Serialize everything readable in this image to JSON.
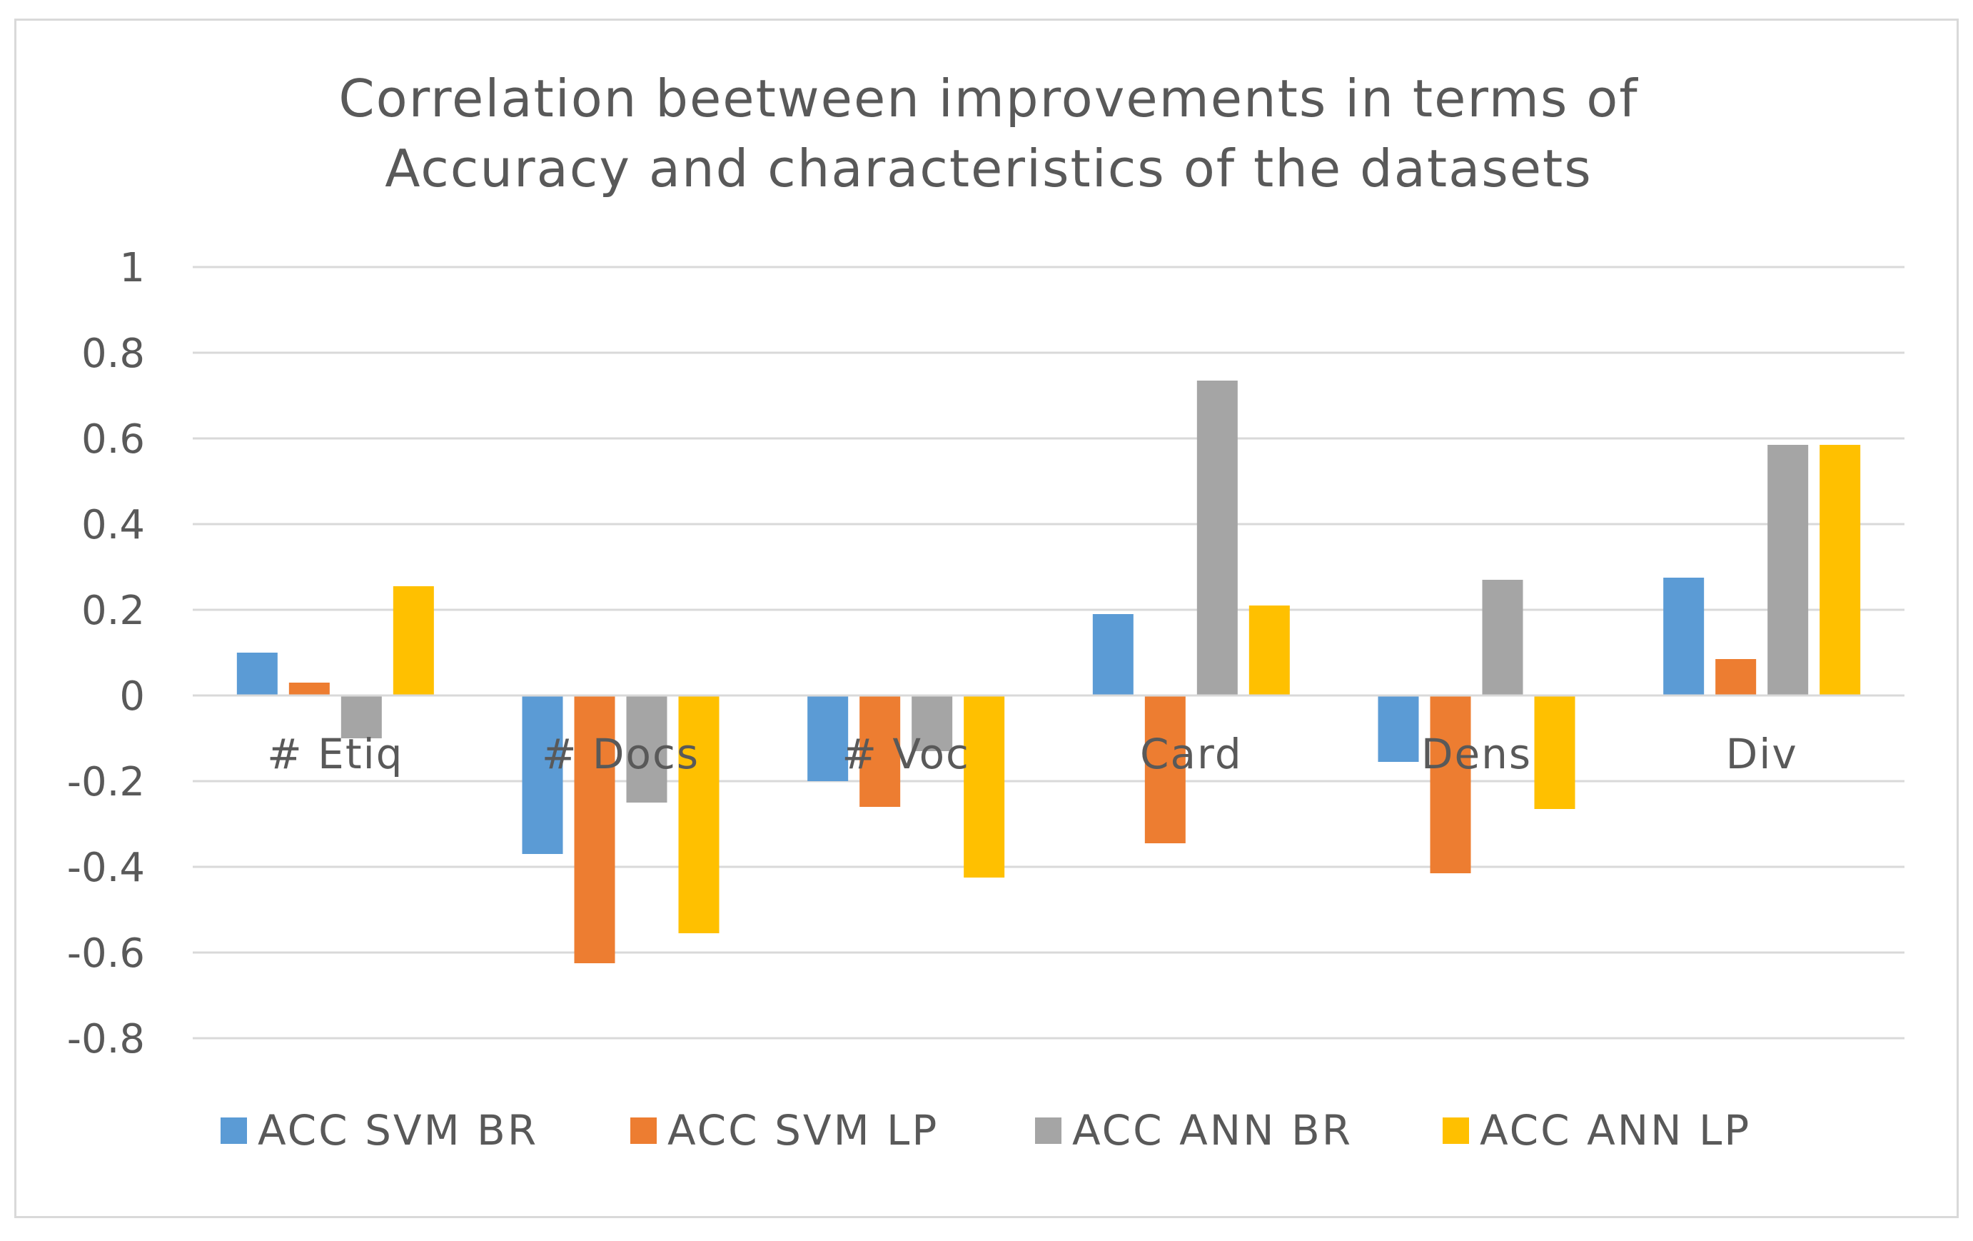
{
  "chart_data": {
    "type": "bar",
    "title_lines": [
      "Correlation beetween improvements in terms of",
      "Accuracy and characteristics of the datasets"
    ],
    "categories": [
      "# Etiq",
      "# Docs",
      "# Voc",
      "Card",
      "Dens",
      "Div"
    ],
    "series": [
      {
        "name": "ACC SVM BR",
        "color": "#5b9bd5",
        "values": [
          0.1,
          -0.37,
          -0.2,
          0.19,
          -0.155,
          0.275
        ]
      },
      {
        "name": "ACC SVM LP",
        "color": "#ed7d31",
        "values": [
          0.03,
          -0.625,
          -0.26,
          -0.345,
          -0.415,
          0.085
        ]
      },
      {
        "name": "ACC ANN BR",
        "color": "#a5a5a5",
        "values": [
          -0.1,
          -0.25,
          -0.13,
          0.735,
          0.27,
          0.585
        ]
      },
      {
        "name": "ACC ANN LP",
        "color": "#ffc000",
        "values": [
          0.255,
          -0.555,
          -0.425,
          0.21,
          -0.265,
          0.585
        ]
      }
    ],
    "ylim": [
      -0.8,
      1
    ],
    "yticks": [
      1,
      0.8,
      0.6,
      0.4,
      0.2,
      0,
      -0.2,
      -0.4,
      -0.6,
      -0.8
    ],
    "ytick_labels": [
      "1",
      "0.8",
      "0.6",
      "0.4",
      "0.2",
      "0",
      "-0.2",
      "-0.4",
      "-0.6",
      "-0.8"
    ],
    "grid": true,
    "legend_position": "bottom",
    "xlabel": "",
    "ylabel": ""
  }
}
